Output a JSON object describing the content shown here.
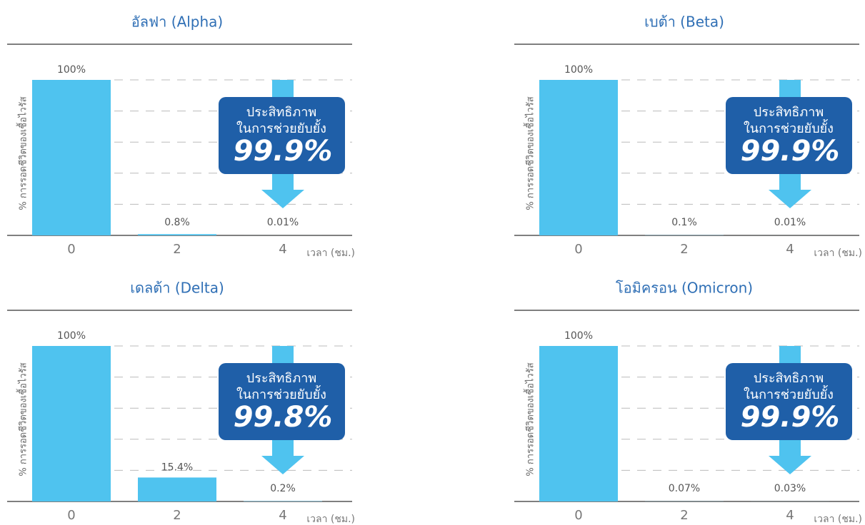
{
  "chart_data": [
    {
      "type": "bar",
      "title": "อัลฟา (Alpha)",
      "categories": [
        "0",
        "2",
        "4"
      ],
      "values": [
        100,
        0.8,
        0.01
      ],
      "value_labels": [
        "100%",
        "0.8%",
        "0.01%"
      ],
      "color": "#4fc3ef",
      "ylim": [
        0,
        100
      ],
      "yticks": [
        0,
        20,
        40,
        60,
        80,
        100
      ],
      "grid": true,
      "y_label": "% การรอดชีวิตของเชื้อไวรัส",
      "x_label": "เวลา (ชม.)",
      "annotation": {
        "line1": "ประสิทธิภาพ",
        "line2": "ในการช่วยยับยั้ง",
        "value": "99.9%"
      }
    },
    {
      "type": "bar",
      "title": "เบต้า (Beta)",
      "categories": [
        "0",
        "2",
        "4"
      ],
      "values": [
        100,
        0.1,
        0.01
      ],
      "value_labels": [
        "100%",
        "0.1%",
        "0.01%"
      ],
      "color": "#4fc3ef",
      "ylim": [
        0,
        100
      ],
      "yticks": [
        0,
        20,
        40,
        60,
        80,
        100
      ],
      "grid": true,
      "y_label": "% การรอดชีวิตของเชื้อไวรัส",
      "x_label": "เวลา (ชม.)",
      "annotation": {
        "line1": "ประสิทธิภาพ",
        "line2": "ในการช่วยยับยั้ง",
        "value": "99.9%"
      }
    },
    {
      "type": "bar",
      "title": "เดลต้า (Delta)",
      "categories": [
        "0",
        "2",
        "4"
      ],
      "values": [
        100,
        15.4,
        0.2
      ],
      "value_labels": [
        "100%",
        "15.4%",
        "0.2%"
      ],
      "color": "#4fc3ef",
      "ylim": [
        0,
        100
      ],
      "yticks": [
        0,
        20,
        40,
        60,
        80,
        100
      ],
      "grid": true,
      "y_label": "% การรอดชีวิตของเชื้อไวรัส",
      "x_label": "เวลา (ชม.)",
      "annotation": {
        "line1": "ประสิทธิภาพ",
        "line2": "ในการช่วยยับยั้ง",
        "value": "99.8%"
      }
    },
    {
      "type": "bar",
      "title": "โอมิครอน (Omicron)",
      "categories": [
        "0",
        "2",
        "4"
      ],
      "values": [
        100,
        0.07,
        0.03
      ],
      "value_labels": [
        "100%",
        "0.07%",
        "0.03%"
      ],
      "color": "#4fc3ef",
      "ylim": [
        0,
        100
      ],
      "yticks": [
        0,
        20,
        40,
        60,
        80,
        100
      ],
      "grid": true,
      "y_label": "% การรอดชีวิตของเชื้อไวรัส",
      "x_label": "เวลา (ชม.)",
      "annotation": {
        "line1": "ประสิทธิภาพ",
        "line2": "ในการช่วยยับยั้ง",
        "value": "99.9%"
      }
    }
  ]
}
